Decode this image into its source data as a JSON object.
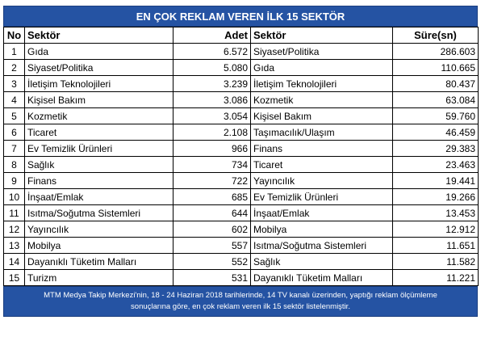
{
  "title": "EN ÇOK REKLAM VEREN İLK 15 SEKTÖR",
  "headers": {
    "no": "No",
    "sector": "Sektör",
    "count": "Adet",
    "sector2": "Sektör",
    "duration": "Süre(sn)"
  },
  "rows": [
    {
      "no": "1",
      "sector": "Gıda",
      "count": "6.572",
      "sector2": "Siyaset/Politika",
      "duration": "286.603"
    },
    {
      "no": "2",
      "sector": "Siyaset/Politika",
      "count": "5.080",
      "sector2": "Gıda",
      "duration": "110.665"
    },
    {
      "no": "3",
      "sector": "İletişim Teknolojileri",
      "count": "3.239",
      "sector2": "İletişim Teknolojileri",
      "duration": "80.437"
    },
    {
      "no": "4",
      "sector": "Kişisel Bakım",
      "count": "3.086",
      "sector2": "Kozmetik",
      "duration": "63.084"
    },
    {
      "no": "5",
      "sector": "Kozmetik",
      "count": "3.054",
      "sector2": "Kişisel Bakım",
      "duration": "59.760"
    },
    {
      "no": "6",
      "sector": "Ticaret",
      "count": "2.108",
      "sector2": "Taşımacılık/Ulaşım",
      "duration": "46.459"
    },
    {
      "no": "7",
      "sector": "Ev Temizlik Ürünleri",
      "count": "966",
      "sector2": "Finans",
      "duration": "29.383"
    },
    {
      "no": "8",
      "sector": "Sağlık",
      "count": "734",
      "sector2": "Ticaret",
      "duration": "23.463"
    },
    {
      "no": "9",
      "sector": "Finans",
      "count": "722",
      "sector2": "Yayıncılık",
      "duration": "19.441"
    },
    {
      "no": "10",
      "sector": "İnşaat/Emlak",
      "count": "685",
      "sector2": "Ev Temizlik Ürünleri",
      "duration": "19.266"
    },
    {
      "no": "11",
      "sector": "Isıtma/Soğutma Sistemleri",
      "count": "644",
      "sector2": "İnşaat/Emlak",
      "duration": "13.453"
    },
    {
      "no": "12",
      "sector": "Yayıncılık",
      "count": "602",
      "sector2": "Mobilya",
      "duration": "12.912"
    },
    {
      "no": "13",
      "sector": "Mobilya",
      "count": "557",
      "sector2": "Isıtma/Soğutma Sistemleri",
      "duration": "11.651"
    },
    {
      "no": "14",
      "sector": "Dayanıklı Tüketim Malları",
      "count": "552",
      "sector2": "Sağlık",
      "duration": "11.582"
    },
    {
      "no": "15",
      "sector": "Turizm",
      "count": "531",
      "sector2": "Dayanıklı Tüketim Malları",
      "duration": "11.221"
    }
  ],
  "footnote": {
    "line1": "MTM Medya Takip Merkezi'nin, 18 - 24 Haziran 2018 tarihlerinde, 14 TV kanalı üzerinden,  yaptığı reklam ölçümleme",
    "line2": "sonuçlarına göre, en çok reklam veren ilk 15 sektör  listelenmiştir."
  },
  "colors": {
    "header_bg": "#2553a3",
    "header_text": "#ffffff"
  }
}
